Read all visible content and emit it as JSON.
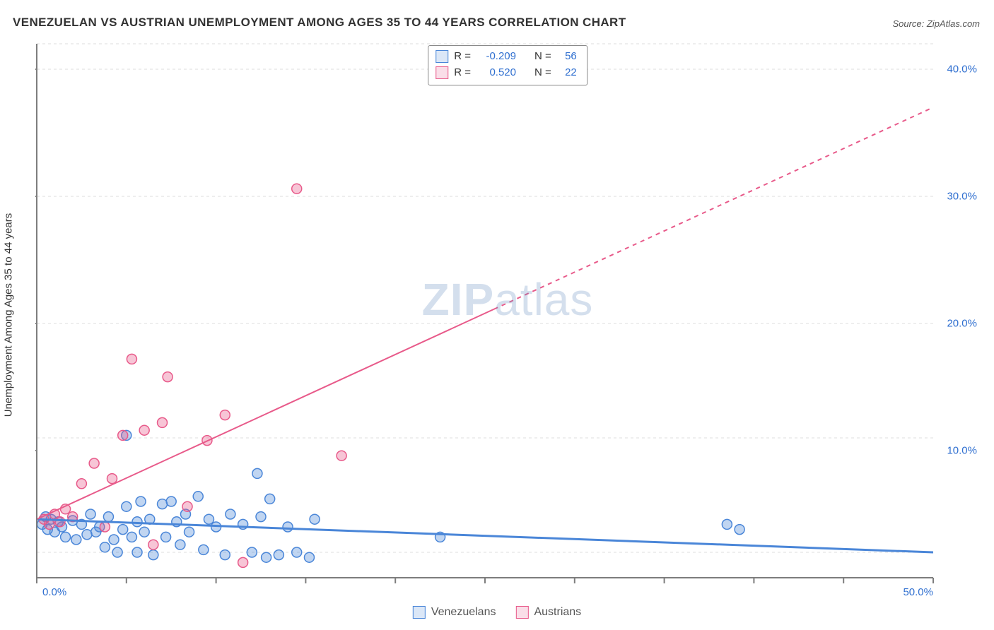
{
  "title": "VENEZUELAN VS AUSTRIAN UNEMPLOYMENT AMONG AGES 35 TO 44 YEARS CORRELATION CHART",
  "source": "Source: ZipAtlas.com",
  "ylabel": "Unemployment Among Ages 35 to 44 years",
  "watermark": {
    "bold": "ZIP",
    "rest": "atlas"
  },
  "chart": {
    "type": "scatter",
    "background_color": "#ffffff",
    "grid_color": "#e4e4e4",
    "grid_dash": "4 4",
    "axis_color": "#7d7d7d",
    "axis_width": 2,
    "tick_color": "#7d7d7d",
    "tick_len": 8,
    "ytick_label_color": "#2f6fd0",
    "xtick_label_color": "#2f6fd0",
    "xlim": [
      0,
      50
    ],
    "ylim": [
      0,
      42
    ],
    "xticks": [
      0,
      5,
      10,
      15,
      20,
      25,
      30,
      35,
      40,
      45,
      50
    ],
    "xtick_labels": {
      "0": "0.0%",
      "50": "50.0%"
    },
    "yticks": [
      10,
      20,
      30,
      40
    ],
    "ytick_labels": {
      "10": "10.0%",
      "20": "20.0%",
      "30": "30.0%",
      "40": "40.0%"
    },
    "ygrid": [
      2,
      11,
      20,
      30,
      40,
      42
    ],
    "marker_radius": 7,
    "marker_stroke_width": 1.5,
    "marker_fill_opacity": 0.35,
    "series": [
      {
        "key": "venezuelans",
        "label": "Venezuelans",
        "color": "#4a86d8",
        "n": 56,
        "r": "-0.209",
        "trend": {
          "x0": 0,
          "y0": 4.6,
          "x1": 50,
          "y1": 2.0,
          "width": 3
        },
        "points": [
          [
            0.3,
            4.2
          ],
          [
            0.5,
            4.8
          ],
          [
            0.6,
            3.8
          ],
          [
            0.8,
            4.6
          ],
          [
            1.0,
            3.6
          ],
          [
            1.2,
            4.4
          ],
          [
            1.4,
            4.0
          ],
          [
            1.6,
            3.2
          ],
          [
            2.0,
            4.5
          ],
          [
            2.2,
            3.0
          ],
          [
            2.5,
            4.2
          ],
          [
            2.8,
            3.4
          ],
          [
            3.0,
            5.0
          ],
          [
            3.3,
            3.6
          ],
          [
            3.5,
            4.0
          ],
          [
            3.8,
            2.4
          ],
          [
            4.0,
            4.8
          ],
          [
            4.3,
            3.0
          ],
          [
            4.5,
            2.0
          ],
          [
            4.8,
            3.8
          ],
          [
            5.0,
            5.6
          ],
          [
            5.0,
            11.2
          ],
          [
            5.3,
            3.2
          ],
          [
            5.6,
            4.4
          ],
          [
            5.6,
            2.0
          ],
          [
            5.8,
            6.0
          ],
          [
            6.0,
            3.6
          ],
          [
            6.3,
            4.6
          ],
          [
            6.5,
            1.8
          ],
          [
            7.0,
            5.8
          ],
          [
            7.2,
            3.2
          ],
          [
            7.5,
            6.0
          ],
          [
            7.8,
            4.4
          ],
          [
            8.0,
            2.6
          ],
          [
            8.3,
            5.0
          ],
          [
            8.5,
            3.6
          ],
          [
            9.0,
            6.4
          ],
          [
            9.3,
            2.2
          ],
          [
            9.6,
            4.6
          ],
          [
            10.0,
            4.0
          ],
          [
            10.5,
            1.8
          ],
          [
            10.8,
            5.0
          ],
          [
            11.5,
            4.2
          ],
          [
            12.0,
            2.0
          ],
          [
            12.3,
            8.2
          ],
          [
            12.5,
            4.8
          ],
          [
            12.8,
            1.6
          ],
          [
            13.0,
            6.2
          ],
          [
            13.5,
            1.8
          ],
          [
            14.0,
            4.0
          ],
          [
            14.5,
            2.0
          ],
          [
            15.2,
            1.6
          ],
          [
            15.5,
            4.6
          ],
          [
            22.5,
            3.2
          ],
          [
            38.5,
            4.2
          ],
          [
            39.2,
            3.8
          ]
        ]
      },
      {
        "key": "austrians",
        "label": "Austrians",
        "color": "#e85a8a",
        "n": 22,
        "r": " 0.520",
        "trend": {
          "x0": 0,
          "y0": 4.6,
          "x1": 50,
          "y1": 37.0,
          "width": 2,
          "solid_until_x": 25.5
        },
        "points": [
          [
            0.4,
            4.6
          ],
          [
            0.7,
            4.2
          ],
          [
            1.0,
            5.0
          ],
          [
            1.3,
            4.4
          ],
          [
            1.6,
            5.4
          ],
          [
            2.0,
            4.8
          ],
          [
            2.5,
            7.4
          ],
          [
            3.2,
            9.0
          ],
          [
            4.2,
            7.8
          ],
          [
            4.8,
            11.2
          ],
          [
            5.3,
            17.2
          ],
          [
            6.0,
            11.6
          ],
          [
            7.0,
            12.2
          ],
          [
            7.3,
            15.8
          ],
          [
            8.4,
            5.6
          ],
          [
            9.5,
            10.8
          ],
          [
            10.5,
            12.8
          ],
          [
            11.5,
            1.2
          ],
          [
            14.5,
            30.6
          ],
          [
            17.0,
            9.6
          ],
          [
            6.5,
            2.6
          ],
          [
            3.8,
            4.0
          ]
        ]
      }
    ]
  },
  "statbox": {
    "rows": [
      {
        "swatch": "#4a86d8",
        "r_label": "R =",
        "r_val": "-0.209",
        "n_label": "N =",
        "n_val": "56"
      },
      {
        "swatch": "#e85a8a",
        "r_label": "R =",
        "r_val": " 0.520",
        "n_label": "N =",
        "n_val": "22"
      }
    ],
    "value_color": "#2f6fd0"
  },
  "bottom_legend": [
    {
      "label": "Venezuelans",
      "color": "#4a86d8"
    },
    {
      "label": "Austrians",
      "color": "#e85a8a"
    }
  ]
}
